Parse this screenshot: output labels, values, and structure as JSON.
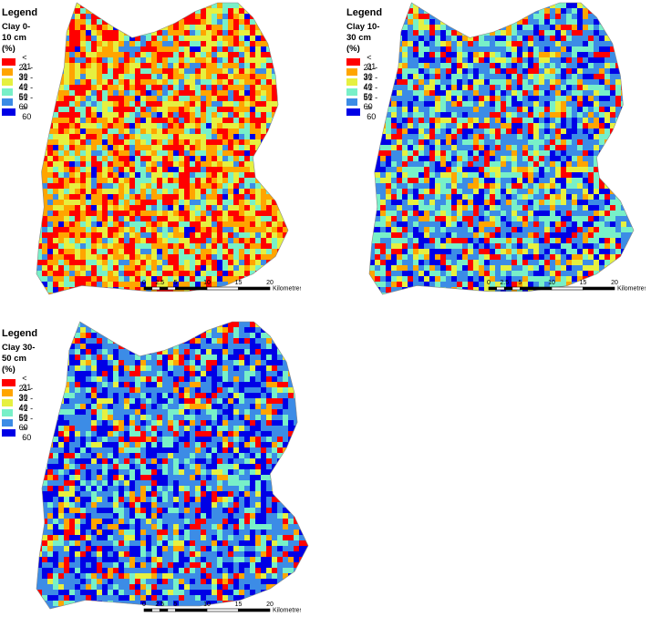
{
  "legend_classes": [
    {
      "label": "< 21",
      "color": "#ff0000"
    },
    {
      "label": "21 - 30",
      "color": "#ffa500"
    },
    {
      "label": "31 - 40",
      "color": "#e6f040"
    },
    {
      "label": "41 - 50",
      "color": "#78f0c8"
    },
    {
      "label": "51 - 60",
      "color": "#3c8ce6"
    },
    {
      "label": "> 60",
      "color": "#0000e6"
    }
  ],
  "scale": {
    "ticks": [
      "0",
      "2.5",
      "5",
      "10",
      "15",
      "20"
    ],
    "unit": "Kilometres"
  },
  "maps": [
    {
      "legend_title": "Legend",
      "subtitle": "Clay 0-10 cm (%)",
      "class_shares": [
        0.28,
        0.25,
        0.2,
        0.15,
        0.09,
        0.03
      ]
    },
    {
      "legend_title": "Legend",
      "subtitle": "Clay 10-30 cm (%)",
      "class_shares": [
        0.12,
        0.08,
        0.1,
        0.22,
        0.3,
        0.18
      ]
    },
    {
      "legend_title": "Legend",
      "subtitle": "Clay 30-50 cm (%)",
      "class_shares": [
        0.1,
        0.07,
        0.05,
        0.15,
        0.35,
        0.28
      ]
    }
  ]
}
